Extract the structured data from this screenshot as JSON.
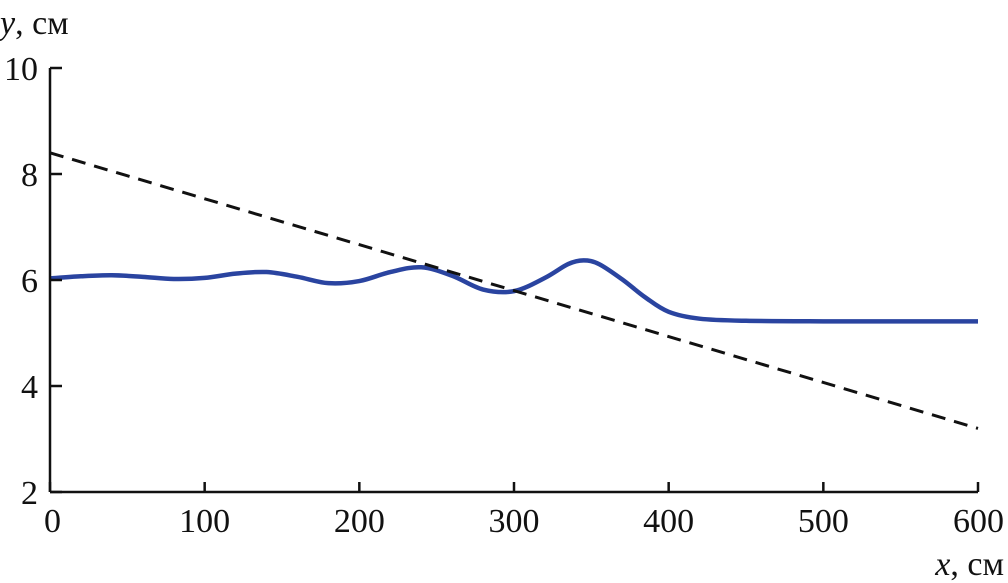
{
  "chart_data": {
    "type": "line",
    "xlabel_var": "x",
    "xlabel_unit": ", см",
    "ylabel_var": "y",
    "ylabel_unit": ", см",
    "xlim": [
      0,
      600
    ],
    "ylim": [
      2,
      10
    ],
    "xticks": [
      "0",
      "100",
      "200",
      "300",
      "400",
      "500",
      "600"
    ],
    "yticks": [
      "2",
      "4",
      "6",
      "8",
      "10"
    ],
    "grid": false,
    "series": [
      {
        "style": "solid",
        "color": "#2a44a0",
        "x": [
          0,
          20,
          40,
          60,
          80,
          100,
          120,
          140,
          160,
          180,
          200,
          220,
          240,
          260,
          280,
          300,
          320,
          335,
          345,
          355,
          370,
          385,
          400,
          420,
          450,
          500,
          550,
          600
        ],
        "y": [
          6.03,
          6.07,
          6.09,
          6.06,
          6.02,
          6.04,
          6.12,
          6.15,
          6.06,
          5.94,
          5.98,
          6.15,
          6.24,
          6.08,
          5.82,
          5.79,
          6.04,
          6.3,
          6.37,
          6.3,
          6.01,
          5.67,
          5.4,
          5.27,
          5.23,
          5.22,
          5.22,
          5.22
        ]
      },
      {
        "style": "dashed",
        "color": "#111111",
        "x": [
          0,
          600
        ],
        "y": [
          8.4,
          3.2
        ]
      }
    ]
  }
}
